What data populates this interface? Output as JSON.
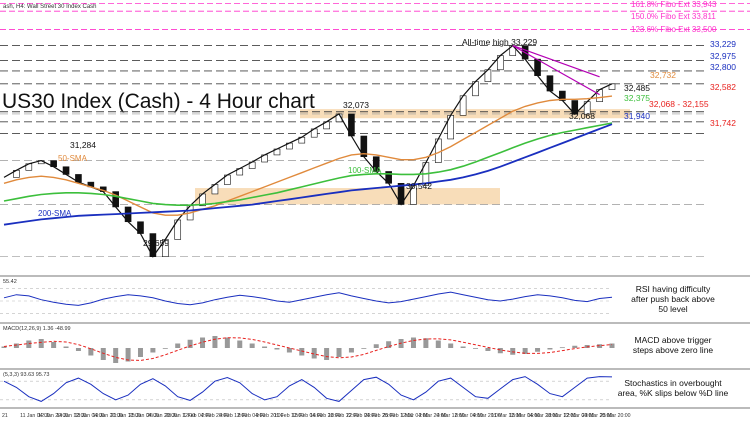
{
  "header": {
    "caption": "ash, H4: Wall Street 30 Index Cash"
  },
  "title": "US30 Index (Cash) - 4 Hour chart",
  "colors": {
    "sma50": "#e08a3c",
    "sma100": "#3cbf3c",
    "sma200": "#1a2fbf",
    "fibo": "#ff33cc",
    "resistance": "#e8211e",
    "support": "#1a2fbf",
    "zone": "#f6d4a8",
    "trend": "#b400b4"
  },
  "fibo_levels": [
    {
      "label": "161.8% Fibo Ext 33,943",
      "value": 33943
    },
    {
      "label": "150.0% Fibo Ext 33,811",
      "value": 33811
    },
    {
      "label": "123.6% Fibo Ext 33,500",
      "value": 33500
    }
  ],
  "annotations": {
    "all_time_high": "All-time high 33,229",
    "peak_left": "31,284",
    "low_left": "29,659",
    "level_32073": "32,073",
    "level_30542": "30,542",
    "level_32068": "32,068",
    "level_32485": "32,485",
    "level_32375": "32,375",
    "level_32732": "32,732",
    "sma50_label": "50-SMA",
    "sma100_label": "100-SMA",
    "sma200_label": "200-SMA"
  },
  "right_levels": [
    {
      "text": "33,229",
      "value": 33229,
      "color": "#1a2fbf"
    },
    {
      "text": "32,975",
      "value": 32975,
      "color": "#1a2fbf"
    },
    {
      "text": "32,800",
      "value": 32800,
      "color": "#1a2fbf"
    },
    {
      "text": "32,582",
      "value": 32582,
      "color": "#e8211e"
    },
    {
      "text": "32,068 - 32,155",
      "value": 32110,
      "color": "#e8211e"
    },
    {
      "text": "31,940",
      "value": 31940,
      "color": "#1a2fbf"
    },
    {
      "text": "31,742",
      "value": 31742,
      "color": "#e8211e"
    }
  ],
  "panels": {
    "rsi": {
      "header": "55.42",
      "comment": [
        "RSI having difficulty",
        "after push back above",
        "50 level"
      ]
    },
    "macd": {
      "header": "MACD(12,26,9) 1.36 -48.99",
      "comment": [
        "MACD above trigger",
        "steps above zero line"
      ]
    },
    "stoch": {
      "header": "(5,3,3) 93.63 95.73",
      "comment": [
        "Stochastics in overbought",
        "area, %K slips below %D line"
      ]
    }
  },
  "x_axis": {
    "labels": [
      "21",
      "11 Jan 04:00",
      "12 Jan 20:00",
      "14 Jan 12:00",
      "18 Jan 04:00",
      "19 Jan 20:00",
      "21 Jan 12:00",
      "25 Jan 04:00",
      "26 Jan 20:00",
      "28 Jan 12:00",
      "1 Feb 04:00",
      "2 Feb 20:00",
      "4 Feb 12:00",
      "8 Feb 04:00",
      "9 Feb 20:00",
      "11 Feb 12:00",
      "15 Feb 04:00",
      "16 Feb 20:00",
      "18 Feb 12:00",
      "22 Feb 04:00",
      "23 Feb 20:00",
      "25 Feb 12:00",
      "1 Mar 04:00",
      "2 Mar 20:00",
      "4 Mar 12:00",
      "8 Mar 04:00",
      "9 Mar 20:00",
      "11 Mar 12:00",
      "15 Mar 04:00",
      "16 Mar 20:00",
      "18 Mar 12:00",
      "22 Mar 04:00",
      "23 Mar 20:00",
      "25 Mar 20:00"
    ]
  },
  "chart_data": {
    "type": "line",
    "ylim": [
      29400,
      34000
    ],
    "series": [
      {
        "name": "price",
        "values": [
          31000,
          31120,
          31230,
          31284,
          31180,
          31050,
          30920,
          30840,
          30760,
          30500,
          30250,
          30050,
          29659,
          29950,
          30280,
          30520,
          30720,
          30880,
          31040,
          31150,
          31260,
          31380,
          31480,
          31580,
          31680,
          31820,
          31940,
          32073,
          31700,
          31350,
          31100,
          30900,
          30542,
          30860,
          31250,
          31650,
          32050,
          32380,
          32620,
          32820,
          33060,
          33229,
          33000,
          32720,
          32460,
          32300,
          32068,
          32280,
          32485,
          32582
        ]
      },
      {
        "name": "50-SMA",
        "values": [
          30900,
          30960,
          31000,
          31020,
          31000,
          30960,
          30900,
          30840,
          30780,
          30700,
          30600,
          30500,
          30400,
          30360,
          30360,
          30400,
          30460,
          30520,
          30600,
          30680,
          30760,
          30840,
          30920,
          31000,
          31080,
          31160,
          31240,
          31320,
          31380,
          31400,
          31380,
          31340,
          31300,
          31300,
          31340,
          31420,
          31520,
          31640,
          31760,
          31880,
          32000,
          32120,
          32200,
          32260,
          32300,
          32320,
          32320,
          32330,
          32350,
          32375
        ]
      },
      {
        "name": "100-SMA",
        "values": [
          30600,
          30640,
          30680,
          30710,
          30730,
          30740,
          30740,
          30730,
          30710,
          30680,
          30640,
          30600,
          30560,
          30540,
          30530,
          30530,
          30540,
          30560,
          30590,
          30620,
          30660,
          30700,
          30740,
          30790,
          30840,
          30890,
          30940,
          30990,
          31030,
          31050,
          31060,
          31060,
          31050,
          31050,
          31060,
          31090,
          31130,
          31190,
          31260,
          31340,
          31420,
          31500,
          31580,
          31650,
          31710,
          31760,
          31800,
          31840,
          31880,
          31920
        ]
      },
      {
        "name": "200-SMA",
        "values": [
          30200,
          30230,
          30260,
          30290,
          30310,
          30330,
          30350,
          30360,
          30370,
          30380,
          30390,
          30400,
          30410,
          30420,
          30430,
          30440,
          30460,
          30480,
          30500,
          30520,
          30540,
          30570,
          30600,
          30630,
          30660,
          30690,
          30720,
          30750,
          30780,
          30800,
          30820,
          30840,
          30860,
          30880,
          30900,
          30930,
          30960,
          31000,
          31050,
          31110,
          31180,
          31260,
          31340,
          31420,
          31500,
          31580,
          31660,
          31740,
          31820,
          31900
        ]
      }
    ],
    "rsi_values": [
      55,
      60,
      58,
      52,
      48,
      45,
      43,
      47,
      53,
      57,
      60,
      58,
      55,
      50,
      46,
      44,
      47,
      52,
      56,
      59,
      57,
      54,
      50,
      48,
      52,
      56,
      60,
      63,
      58,
      54,
      50,
      47,
      49,
      53,
      57,
      61,
      64,
      60,
      56,
      52,
      50,
      53,
      57,
      60,
      58,
      55,
      51,
      49,
      54,
      56
    ],
    "macd_values": [
      10,
      30,
      50,
      60,
      40,
      10,
      -20,
      -50,
      -80,
      -100,
      -90,
      -60,
      -30,
      0,
      30,
      55,
      70,
      80,
      70,
      50,
      30,
      10,
      -10,
      -30,
      -50,
      -70,
      -80,
      -60,
      -30,
      0,
      25,
      45,
      60,
      70,
      65,
      50,
      30,
      10,
      -5,
      -20,
      -35,
      -45,
      -40,
      -25,
      -10,
      5,
      15,
      20,
      25,
      30
    ],
    "stoch_values": [
      80,
      60,
      30,
      15,
      40,
      75,
      90,
      70,
      40,
      20,
      35,
      70,
      88,
      65,
      30,
      18,
      45,
      80,
      92,
      75,
      40,
      20,
      30,
      65,
      85,
      60,
      25,
      15,
      50,
      85,
      93,
      70,
      35,
      20,
      45,
      80,
      90,
      60,
      30,
      25,
      55,
      85,
      95,
      70,
      40,
      30,
      60,
      90,
      95,
      94
    ]
  }
}
